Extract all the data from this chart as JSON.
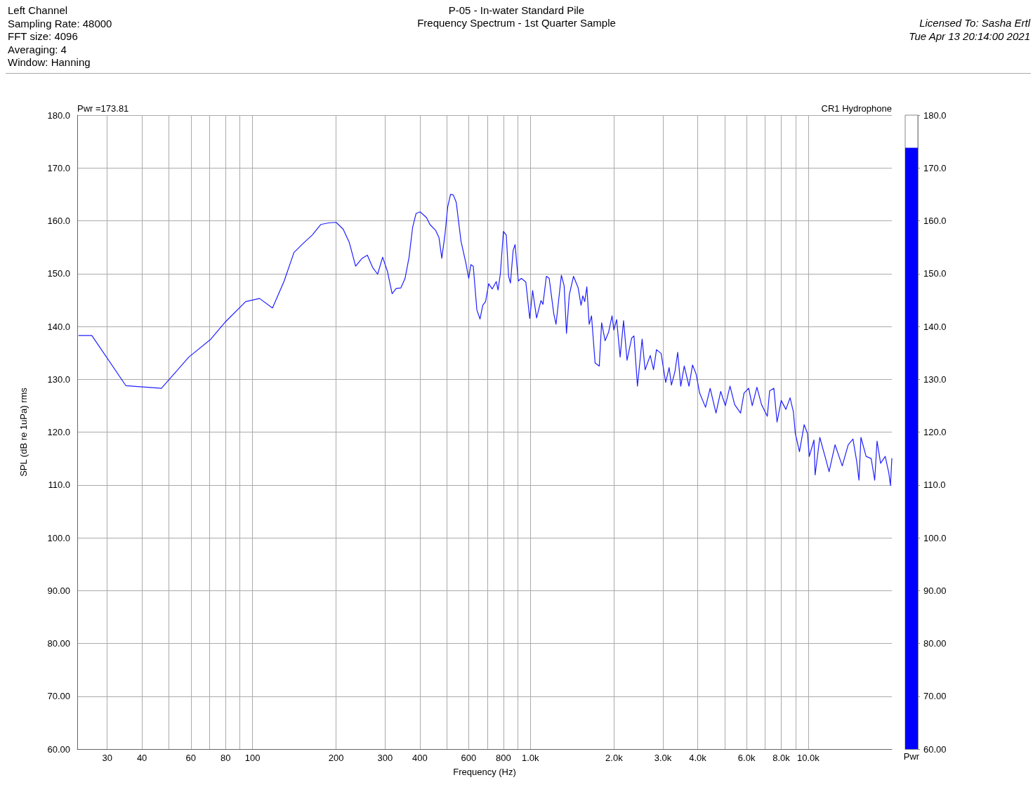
{
  "chart_data": [
    {
      "type": "line",
      "title": "P-05 - In-water Standard Pile",
      "subtitle": "Frequency Spectrum - 1st Quarter Sample",
      "xlabel": "Frequency (Hz)",
      "ylabel": "SPL (dB re 1uPa) rms",
      "annotations": [
        "Left Channel",
        "Sampling Rate: 48000",
        "FFT size: 4096",
        "Averaging: 4",
        "Window: Hanning",
        "Licensed To: Sasha Ertl",
        "Tue Apr 13 20:14:00 2021",
        "Pwr =173.81"
      ],
      "log": "x",
      "grid": true,
      "marker": "none",
      "line_style": "solid",
      "xlim": [
        23.4,
        20000
      ],
      "ylim": [
        60,
        180
      ],
      "xticks": [
        30,
        40,
        {
          "value": 50,
          "label": null
        },
        60,
        {
          "value": 70,
          "label": null
        },
        80,
        {
          "value": 90,
          "label": null
        },
        100,
        200,
        300,
        400,
        {
          "value": 500,
          "label": null
        },
        600,
        {
          "value": 700,
          "label": null
        },
        800,
        {
          "value": 900,
          "label": null
        },
        {
          "value": 1000,
          "label": "1.0k"
        },
        {
          "value": 2000,
          "label": "2.0k"
        },
        {
          "value": 3000,
          "label": "3.0k"
        },
        {
          "value": 4000,
          "label": "4.0k"
        },
        {
          "value": 5000,
          "label": null
        },
        {
          "value": 6000,
          "label": "6.0k"
        },
        {
          "value": 7000,
          "label": null
        },
        {
          "value": 8000,
          "label": "8.0k"
        },
        {
          "value": 9000,
          "label": null
        },
        {
          "value": 10000,
          "label": "10.0k"
        }
      ],
      "yticks": [
        {
          "value": 60,
          "label": "60.00"
        },
        {
          "value": 70,
          "label": "70.00"
        },
        {
          "value": 80,
          "label": "80.00"
        },
        {
          "value": 90,
          "label": "90.00"
        },
        {
          "value": 100,
          "label": "100.0"
        },
        {
          "value": 110,
          "label": "110.0"
        },
        {
          "value": 120,
          "label": "120.0"
        },
        {
          "value": 130,
          "label": "130.0"
        },
        {
          "value": 140,
          "label": "140.0"
        },
        {
          "value": 150,
          "label": "150.0"
        },
        {
          "value": 160,
          "label": "160.0"
        },
        {
          "value": 170,
          "label": "170.0"
        },
        {
          "value": 180,
          "label": "180.0"
        }
      ],
      "series": [
        {
          "name": "CR1 Hydrophone",
          "color": "#2020ff",
          "x": [
            23.7,
            26.4,
            35,
            47,
            59,
            70.5,
            80,
            94.5,
            106,
            118,
            130,
            141,
            152,
            164,
            176,
            188,
            200,
            212,
            223,
            235,
            248,
            259,
            271,
            282,
            294,
            306,
            318,
            329,
            342,
            354,
            366,
            377,
            388,
            401,
            423,
            435,
            456,
            469,
            480,
            493,
            504,
            516,
            528,
            541,
            563,
            586,
            600,
            611,
            623,
            642,
            659,
            674,
            690,
            708,
            729,
            754,
            765,
            780,
            800,
            819,
            835,
            848,
            867,
            881,
            905,
            928,
            963,
            995,
            1019,
            1053,
            1092,
            1110,
            1142,
            1169,
            1214,
            1237,
            1293,
            1323,
            1349,
            1381,
            1430,
            1486,
            1522,
            1545,
            1569,
            1597,
            1628,
            1660,
            1710,
            1770,
            1805,
            1858,
            1912,
            1968,
            1998,
            2044,
            2104,
            2165,
            2228,
            2315,
            2360,
            2429,
            2525,
            2588,
            2701,
            2775,
            2844,
            2955,
            3069,
            3158,
            3219,
            3313,
            3391,
            3477,
            3580,
            3723,
            3835,
            3949,
            4066,
            4270,
            4437,
            4657,
            4842,
            5032,
            5231,
            5437,
            5708,
            5876,
            6107,
            6289,
            6537,
            6795,
            7126,
            7264,
            7523,
            7724,
            7996,
            8311,
            8606,
            8846,
            8983,
            9302,
            9670,
            9938,
            10090,
            10490,
            10590,
            11010,
            11550,
            11890,
            12490,
            13260,
            13930,
            14490,
            14940,
            15230,
            15480,
            16160,
            16850,
            17350,
            17690,
            18220,
            18930,
            19500,
            19770,
            20000
          ],
          "values": [
            138.3,
            138.3,
            128.8,
            128.3,
            134.2,
            137.5,
            140.9,
            144.7,
            145.3,
            143.5,
            148.6,
            154.0,
            155.7,
            157.3,
            159.3,
            159.6,
            159.7,
            158.4,
            155.9,
            151.4,
            152.9,
            153.5,
            151.1,
            149.9,
            153.1,
            150.4,
            146.2,
            147.2,
            147.3,
            149.1,
            153.1,
            158.8,
            161.4,
            161.7,
            160.6,
            159.3,
            158.2,
            156.8,
            152.9,
            157.5,
            162.6,
            165.0,
            164.9,
            163.5,
            156.1,
            152.0,
            149.1,
            151.7,
            151.4,
            143.1,
            141.4,
            144.0,
            144.7,
            148.1,
            147.1,
            148.5,
            146.9,
            150.0,
            158.0,
            157.3,
            149.5,
            148.2,
            154.4,
            155.5,
            148.6,
            149.1,
            148.4,
            141.5,
            146.8,
            141.6,
            144.9,
            144.2,
            149.5,
            149.1,
            142.4,
            140.4,
            149.7,
            147.7,
            138.7,
            146.0,
            149.5,
            147.3,
            144.0,
            145.8,
            144.7,
            147.5,
            140.4,
            142.0,
            133.1,
            132.5,
            140.7,
            137.3,
            138.9,
            142.0,
            139.3,
            141.3,
            134.2,
            141.1,
            133.6,
            137.8,
            138.2,
            128.7,
            137.6,
            131.8,
            134.5,
            131.8,
            135.6,
            134.9,
            129.4,
            132.2,
            128.9,
            131.4,
            135.1,
            128.7,
            132.5,
            128.7,
            132.7,
            131.0,
            127.4,
            124.7,
            128.3,
            123.6,
            127.7,
            125.0,
            128.7,
            125.2,
            123.6,
            127.4,
            128.3,
            125.0,
            128.5,
            125.2,
            123.0,
            127.8,
            128.3,
            121.9,
            126.0,
            124.3,
            126.5,
            123.8,
            119.8,
            116.3,
            121.4,
            119.8,
            115.4,
            118.5,
            111.9,
            119.0,
            115.0,
            112.5,
            117.6,
            113.6,
            117.6,
            118.7,
            114.5,
            110.9,
            119.0,
            115.4,
            115.0,
            110.9,
            118.3,
            114.1,
            115.4,
            112.3,
            109.9,
            115.0
          ]
        }
      ]
    },
    {
      "type": "bar",
      "categories": [
        "Pwr"
      ],
      "values": [
        173.81
      ],
      "color": "#0000ff",
      "ylim": [
        60,
        180
      ],
      "yticks": [
        {
          "value": 60,
          "label": "60.00"
        },
        {
          "value": 70,
          "label": "70.00"
        },
        {
          "value": 80,
          "label": "80.00"
        },
        {
          "value": 90,
          "label": "90.00"
        },
        {
          "value": 100,
          "label": "100.0"
        },
        {
          "value": 110,
          "label": "110.0"
        },
        {
          "value": 120,
          "label": "120.0"
        },
        {
          "value": 130,
          "label": "130.0"
        },
        {
          "value": 140,
          "label": "140.0"
        },
        {
          "value": 150,
          "label": "150.0"
        },
        {
          "value": 160,
          "label": "160.0"
        },
        {
          "value": 170,
          "label": "170.0"
        },
        {
          "value": 180,
          "label": "180.0"
        }
      ]
    }
  ]
}
